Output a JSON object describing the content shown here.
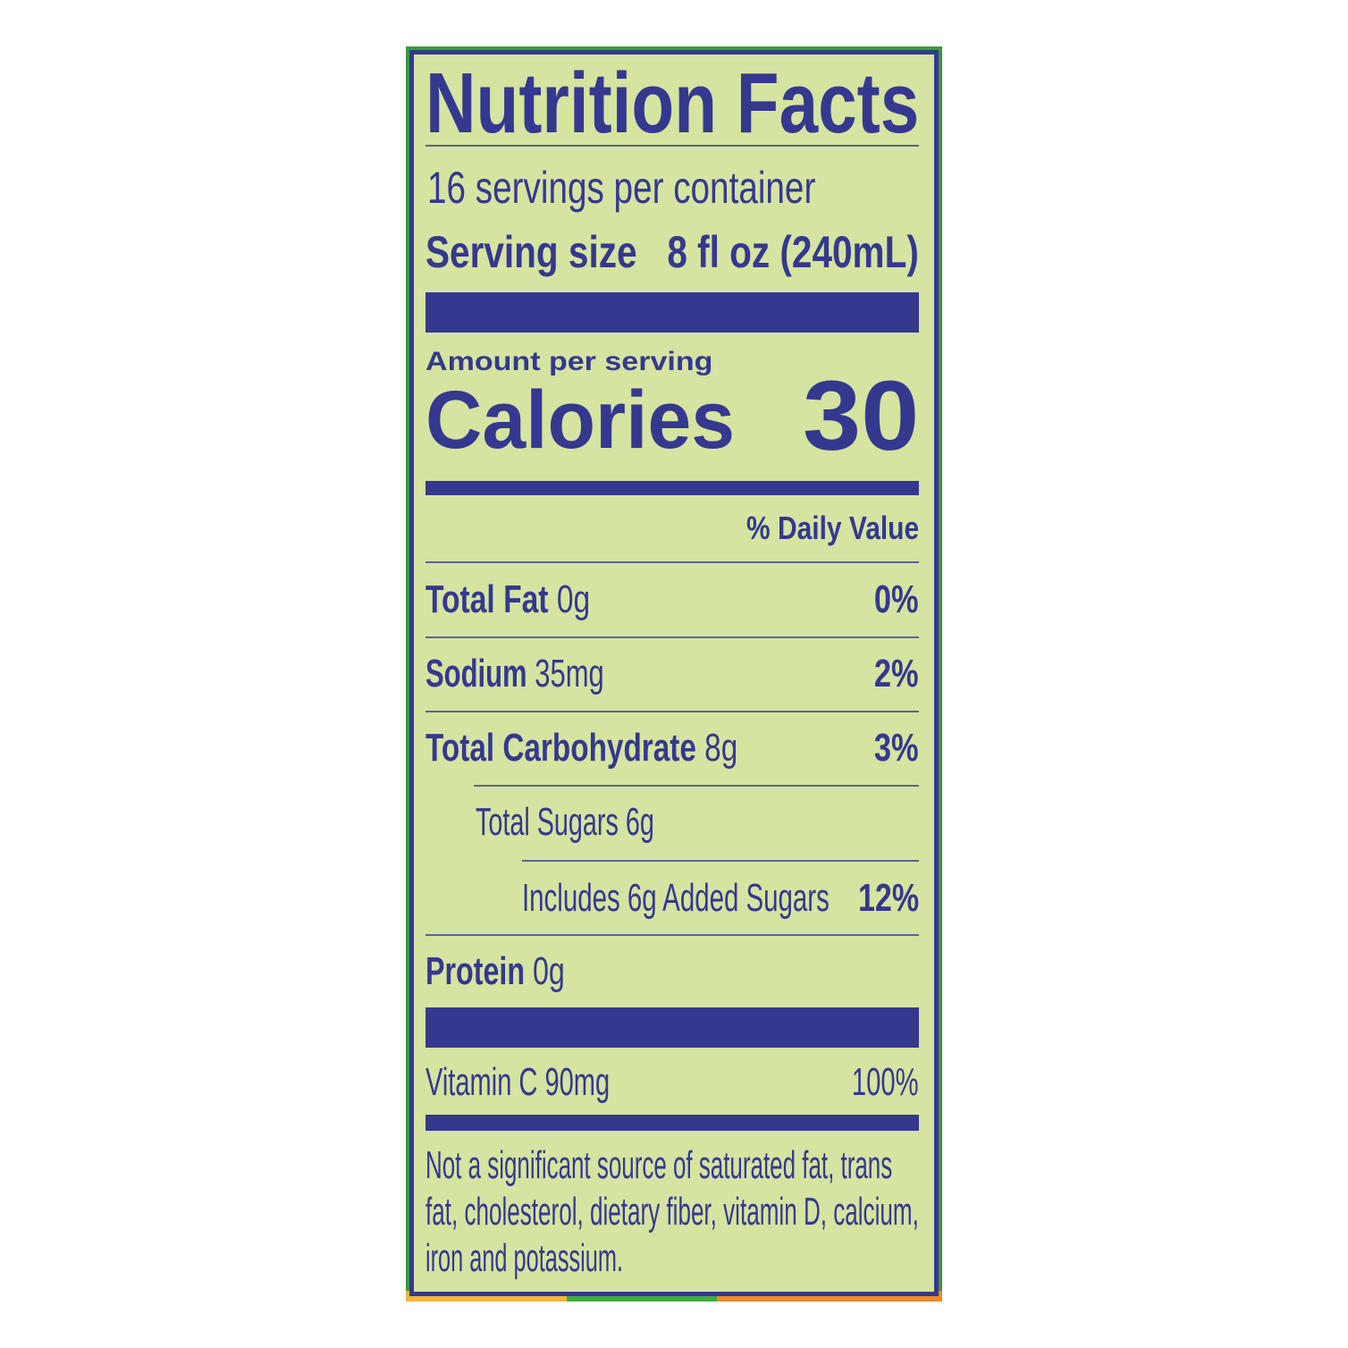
{
  "title": "Nutrition Facts",
  "servings_per_container": "16 servings per container",
  "serving_size": {
    "label": "Serving size",
    "value": "8 fl oz (240mL)"
  },
  "amount_per_serving": "Amount per serving",
  "calories": {
    "label": "Calories",
    "value": "30"
  },
  "daily_value_header": "% Daily Value",
  "nutrients": [
    {
      "name": "Total Fat",
      "amount": "0g",
      "dv": "0%"
    },
    {
      "name": "Sodium",
      "amount": "35mg",
      "dv": "2%"
    },
    {
      "name": "Total Carbohydrate",
      "amount": "8g",
      "dv": "3%"
    },
    {
      "name": "Total Sugars 6g",
      "amount": "",
      "dv": ""
    },
    {
      "name": "Includes 6g Added Sugars",
      "amount": "",
      "dv": "12%"
    },
    {
      "name": "Protein",
      "amount": "0g",
      "dv": ""
    }
  ],
  "vitamins": [
    {
      "name": "Vitamin C 90mg",
      "dv": "100%"
    }
  ],
  "footnote": [
    "Not a significant source of saturated fat, trans",
    "fat, cholesterol, dietary fiber, vitamin D, calcium,",
    "iron and potassium."
  ],
  "colors": {
    "ink": "#35388f",
    "background": "#d5e4a0"
  }
}
